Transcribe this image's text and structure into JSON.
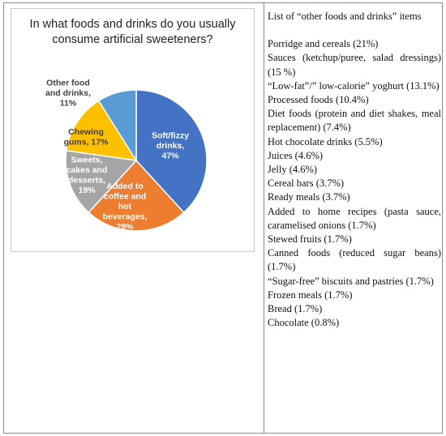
{
  "chart_data": {
    "type": "pie",
    "title": "In what foods and drinks do you usually consume artificial sweeteners?",
    "slices": [
      {
        "label_lines": [
          "Soft/fizzy",
          "drinks,",
          "47%"
        ],
        "name": "Soft/fizzy drinks",
        "value": 47,
        "color": "#4472C4",
        "text_color": "#ffffff"
      },
      {
        "label_lines": [
          "Added to",
          "coffee and",
          "hot",
          "beverages,",
          "29%"
        ],
        "name": "Added to coffee and hot beverages",
        "value": 29,
        "color": "#ED7D31",
        "text_color": "#ffffff"
      },
      {
        "label_lines": [
          "Sweets,",
          "cakes and",
          "desserts,",
          "19%"
        ],
        "name": "Sweets, cakes and desserts",
        "value": 19,
        "color": "#A5A5A5",
        "text_color": "#ffffff"
      },
      {
        "label_lines": [
          "Chewing",
          "gums, 17%"
        ],
        "name": "Chewing gums",
        "value": 17,
        "color": "#FFC000",
        "text_color": "#404040"
      },
      {
        "label_lines": [
          "Other food",
          "and drinks,",
          "11%"
        ],
        "name": "Other food and drinks",
        "value": 11,
        "color": "#5B9BD5",
        "text_color": "#404040"
      }
    ]
  },
  "list": {
    "heading": "List of “other foods and drinks” items",
    "items": [
      "Porridge and cereals (21%)",
      "Sauces (ketchup/puree, salad dressings) (15 %)",
      "“Low-fat”/” low-calorie” yoghurt (13.1%)",
      "Processed foods (10.4%)",
      "Diet foods (protein and diet shakes, meal replacement) (7.4%)",
      "Hot chocolate drinks (5.5%)",
      "Juices (4.6%)",
      "Jelly (4.6%)",
      "Cereal bars (3.7%)",
      "Ready meals (3.7%)",
      "Added to home recipes (pasta sauce, caramelised onions (1.7%)",
      "Stewed fruits (1.7%)",
      "Canned foods (reduced sugar beans) (1.7%)",
      "“Sugar-free” biscuits and pastries (1.7%)",
      "Frozen meals (1.7%)",
      "Bread (1.7%)",
      "Chocolate (0.8%)"
    ]
  }
}
